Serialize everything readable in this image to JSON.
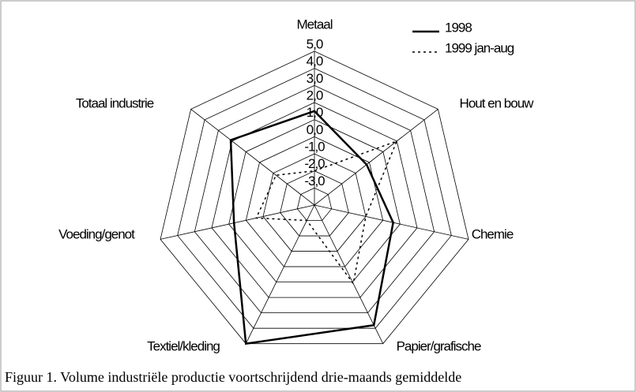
{
  "chart_data": {
    "type": "radar",
    "caption": "Figuur 1. Volume industriële productie voortschrijdend drie-maands gemiddelde",
    "categories": [
      "Metaal",
      "Hout en bouw",
      "Chemie",
      "Papier/grafische",
      "Textiel/kleding",
      "Voeding/genot",
      "Totaal industrie"
    ],
    "series": [
      {
        "name": "1998",
        "color": "#000000",
        "dash": "solid",
        "values": [
          1.5,
          -0.2,
          0.6,
          3.8,
          5.0,
          0.7,
          2.1
        ]
      },
      {
        "name": "1999 jan-aug",
        "color": "#000000",
        "dash": "dotted",
        "values": [
          -2.0,
          2.0,
          -1.0,
          1.1,
          -3.0,
          -0.6,
          -1.2
        ]
      }
    ],
    "ylim": [
      -4,
      5
    ],
    "yticks": [
      {
        "value": -3,
        "label": "-3,0"
      },
      {
        "value": -2,
        "label": "-2,0"
      },
      {
        "value": -1,
        "label": "-1,0"
      },
      {
        "value": 0,
        "label": "0,0"
      },
      {
        "value": 1,
        "label": "1,0"
      },
      {
        "value": 2,
        "label": "2,0"
      },
      {
        "value": 3,
        "label": "3,0"
      },
      {
        "value": 4,
        "label": "4,0"
      },
      {
        "value": 5,
        "label": "5,0"
      }
    ],
    "grid": true,
    "legend": "top-right"
  }
}
